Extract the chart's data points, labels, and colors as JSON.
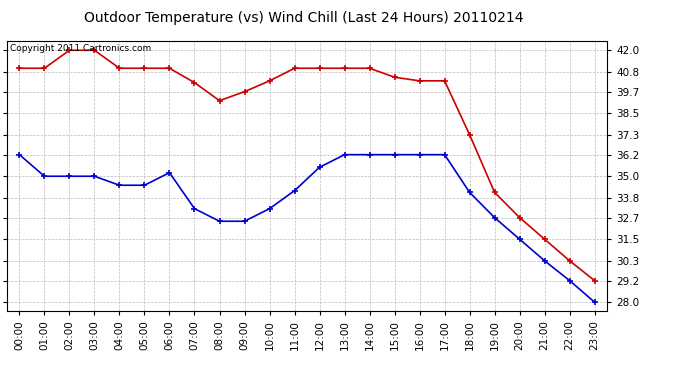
{
  "title": "Outdoor Temperature (vs) Wind Chill (Last 24 Hours) 20110214",
  "copyright_text": "Copyright 2011 Cartronics.com",
  "hours": [
    "00:00",
    "01:00",
    "02:00",
    "03:00",
    "04:00",
    "05:00",
    "06:00",
    "07:00",
    "08:00",
    "09:00",
    "10:00",
    "11:00",
    "12:00",
    "13:00",
    "14:00",
    "15:00",
    "16:00",
    "17:00",
    "18:00",
    "19:00",
    "20:00",
    "21:00",
    "22:00",
    "23:00"
  ],
  "temp": [
    41.0,
    41.0,
    42.0,
    42.0,
    41.0,
    41.0,
    41.0,
    40.2,
    39.2,
    39.7,
    40.3,
    41.0,
    41.0,
    41.0,
    41.0,
    40.5,
    40.3,
    40.3,
    37.3,
    34.1,
    32.7,
    31.5,
    30.3,
    29.2
  ],
  "wind_chill": [
    36.2,
    35.0,
    35.0,
    35.0,
    34.5,
    34.5,
    35.2,
    33.2,
    32.5,
    32.5,
    33.2,
    34.2,
    35.5,
    36.2,
    36.2,
    36.2,
    36.2,
    36.2,
    34.1,
    32.7,
    31.5,
    30.3,
    29.2,
    28.0
  ],
  "ylim_min": 27.5,
  "ylim_max": 42.5,
  "yticks": [
    42.0,
    40.8,
    39.7,
    38.5,
    37.3,
    36.2,
    35.0,
    33.8,
    32.7,
    31.5,
    30.3,
    29.2,
    28.0
  ],
  "temp_color": "#cc0000",
  "wind_chill_color": "#0000cc",
  "background_color": "#ffffff",
  "grid_color": "#bbbbbb",
  "title_fontsize": 10,
  "axis_fontsize": 7.5,
  "copyright_fontsize": 6.5
}
